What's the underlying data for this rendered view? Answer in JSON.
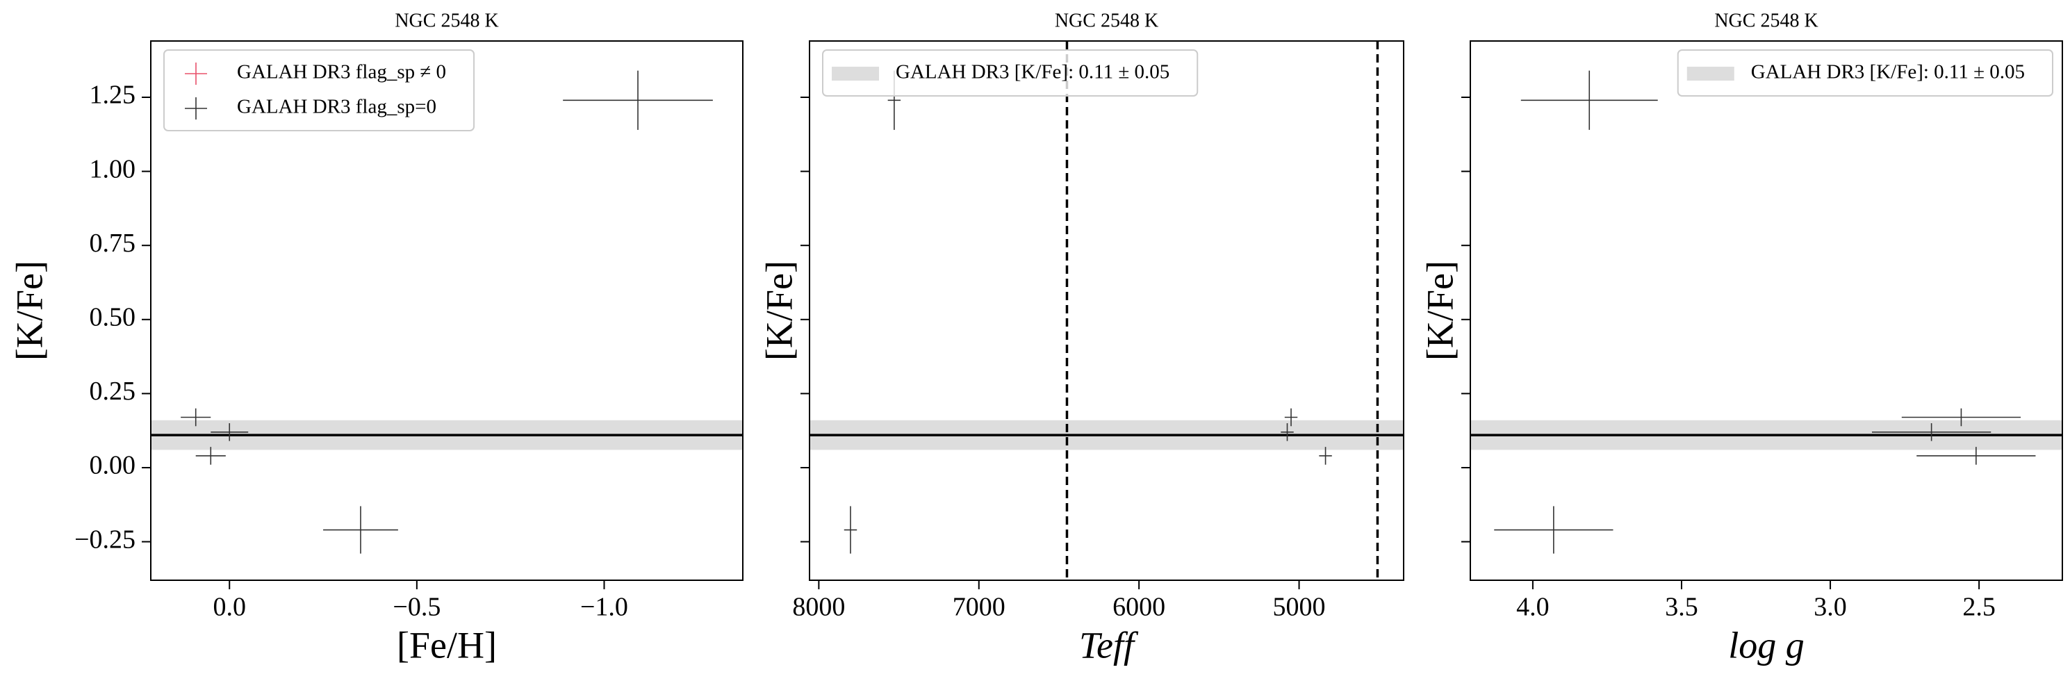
{
  "chart_data": [
    {
      "type": "scatter",
      "title": "NGC 2548 K",
      "xlabel": "[Fe/H]",
      "ylabel": "[K/Fe]",
      "xlim": [
        0.21,
        -1.37
      ],
      "ylim": [
        -0.38,
        1.44
      ],
      "xticks": [
        {
          "value": 0.0,
          "label": "0.0"
        },
        {
          "value": -0.5,
          "label": "−0.5"
        },
        {
          "value": -1.0,
          "label": "−1.0"
        }
      ],
      "yticks": [
        {
          "value": -0.25,
          "label": "−0.25"
        },
        {
          "value": 0.0,
          "label": "0.00"
        },
        0.25,
        {
          "value": 0.5,
          "label": "0.50"
        },
        0.75,
        {
          "value": 1.0,
          "label": "1.00"
        },
        1.25
      ],
      "legend_loc": "upper left",
      "reference": {
        "value": 0.11,
        "error": 0.05,
        "color": "#dddddd"
      },
      "series": [
        {
          "name": "GALAH DR3 flag_sp ≠ 0",
          "color": "#e8506a",
          "x": [],
          "values": [],
          "xerr": [],
          "yerr": []
        },
        {
          "name": "GALAH DR3 flag_sp=0",
          "color": "#333333",
          "x": [
            0.09,
            0.0,
            0.05,
            -0.35,
            -1.09
          ],
          "values": [
            0.17,
            0.12,
            0.04,
            -0.21,
            1.24
          ],
          "xerr": [
            0.04,
            0.05,
            0.04,
            0.1,
            0.2
          ],
          "yerr": [
            0.03,
            0.03,
            0.03,
            0.08,
            0.1
          ]
        }
      ]
    },
    {
      "type": "scatter",
      "title": "NGC 2548 K",
      "xlabel": "Teff",
      "ylabel": "[K/Fe]",
      "xlim": [
        8058,
        4347
      ],
      "ylim": [
        -0.38,
        1.44
      ],
      "xticks": [
        8000,
        7000,
        6000,
        5000
      ],
      "yticks": [
        -0.25,
        0,
        0.25,
        0.5,
        0.75,
        1,
        1.25
      ],
      "legend_loc": "upper left",
      "vlines": [
        6450,
        4510
      ],
      "reference": {
        "value": 0.11,
        "error": 0.05,
        "color": "#dddddd",
        "label": "GALAH DR3 [K/Fe]: 0.11 ± 0.05"
      },
      "series": [
        {
          "color": "#333333",
          "x": [
            5050,
            5074,
            4835,
            7802,
            7529
          ],
          "values": [
            0.17,
            0.12,
            0.04,
            -0.21,
            1.24
          ],
          "xerr": [
            40,
            40,
            40,
            40,
            40
          ],
          "yerr": [
            0.03,
            0.03,
            0.03,
            0.08,
            0.1
          ]
        }
      ]
    },
    {
      "type": "scatter",
      "title": "NGC 2548 K",
      "xlabel": "log g",
      "ylabel": "[K/Fe]",
      "xlim": [
        4.21,
        2.22
      ],
      "ylim": [
        -0.38,
        1.44
      ],
      "xticks": [
        {
          "value": 4.0,
          "label": "4.0"
        },
        3.5,
        {
          "value": 3.0,
          "label": "3.0"
        },
        2.5
      ],
      "yticks": [
        -0.25,
        0,
        0.25,
        0.5,
        0.75,
        1,
        1.25
      ],
      "legend_loc": "upper right",
      "reference": {
        "value": 0.11,
        "error": 0.05,
        "color": "#dddddd",
        "label": "GALAH DR3 [K/Fe]: 0.11 ± 0.05"
      },
      "series": [
        {
          "color": "#333333",
          "x": [
            2.56,
            2.66,
            2.51,
            3.93,
            3.81
          ],
          "values": [
            0.17,
            0.12,
            0.04,
            -0.21,
            1.24
          ],
          "xerr": [
            0.2,
            0.2,
            0.2,
            0.2,
            0.23
          ],
          "yerr": [
            0.03,
            0.03,
            0.03,
            0.08,
            0.1
          ]
        }
      ]
    }
  ]
}
